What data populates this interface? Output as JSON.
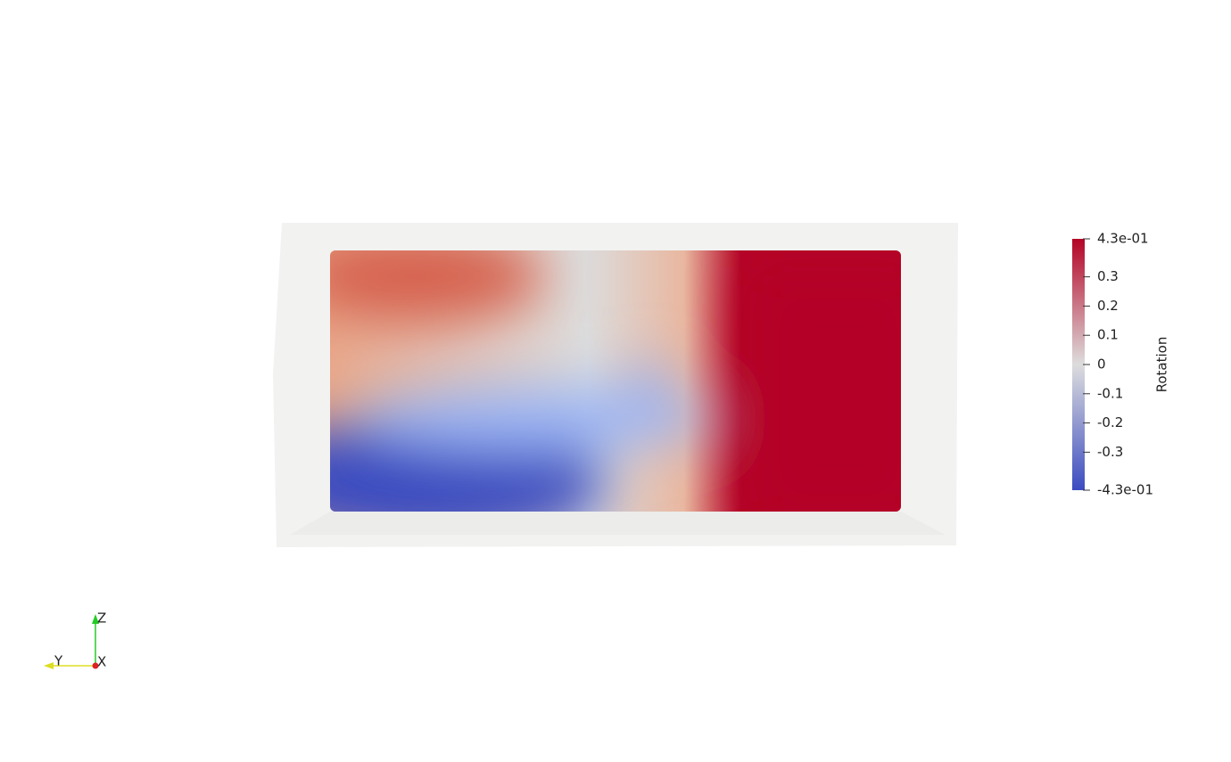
{
  "colorbar": {
    "title": "Rotation",
    "range": [
      -0.43,
      0.43
    ],
    "colors": [
      "#3b4cc0",
      "#dddddd",
      "#b40426"
    ],
    "ticks": [
      {
        "value": 0.43,
        "label": "4.3e-01"
      },
      0.3,
      0.2,
      0.1,
      0,
      -0.1,
      -0.2,
      -0.3,
      {
        "value": -0.43,
        "label": "-4.3e-01"
      }
    ]
  },
  "axes": {
    "z": "Z",
    "y": "Y",
    "x": "X"
  }
}
